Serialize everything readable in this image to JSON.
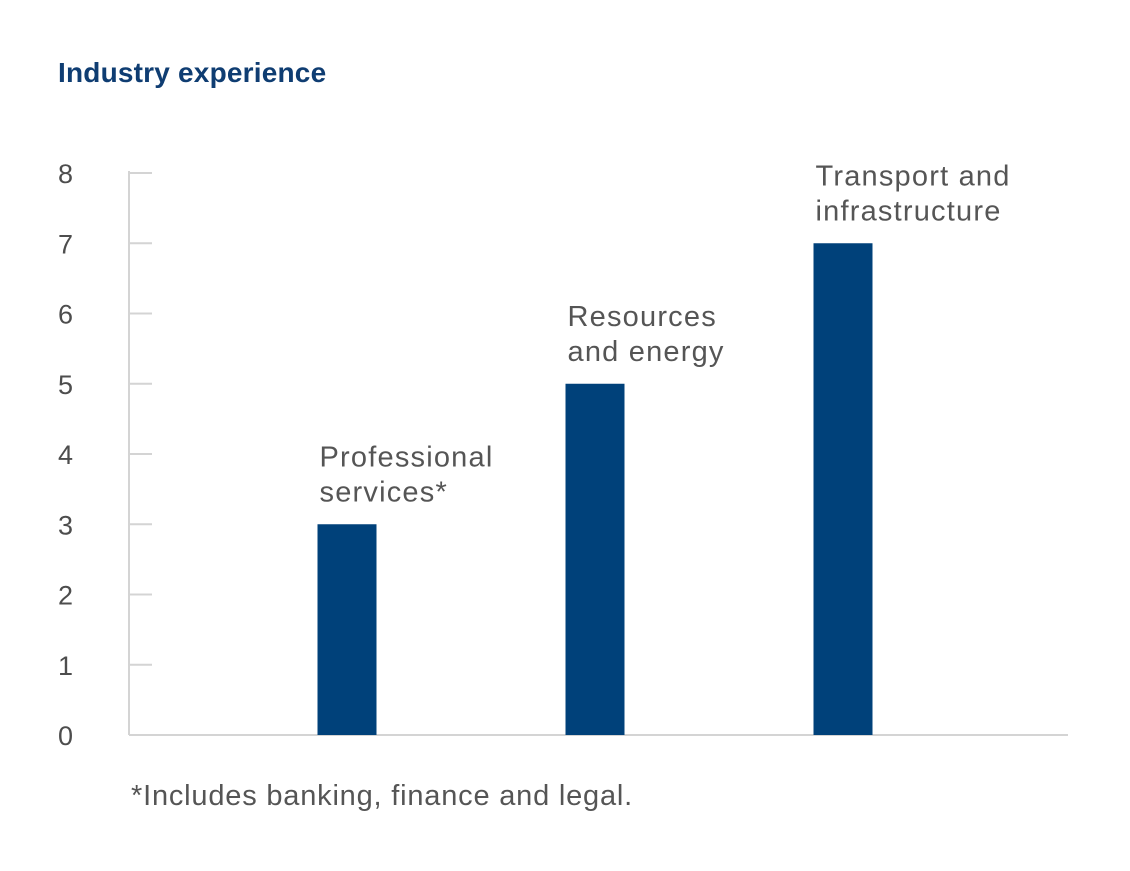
{
  "chart_data": {
    "type": "bar",
    "title": "Industry experience",
    "categories": [
      [
        "Professional",
        "services*"
      ],
      [
        "Resources",
        "and energy"
      ],
      [
        "Transport and",
        "infrastructure"
      ]
    ],
    "values": [
      3,
      5,
      7
    ],
    "ylim": [
      0,
      8
    ],
    "yticks": [
      "0",
      "1",
      "2",
      "3",
      "4",
      "5",
      "6",
      "7",
      "8"
    ],
    "xlabel": "",
    "ylabel": "",
    "grid": false,
    "legend": "none",
    "category_labels_position": "above bars",
    "footnote": "*Includes banking, finance and legal."
  },
  "colors": {
    "bar": "#00417a",
    "title": "#0f3d72",
    "axis": "#d4d4d4",
    "text": "#555555"
  }
}
